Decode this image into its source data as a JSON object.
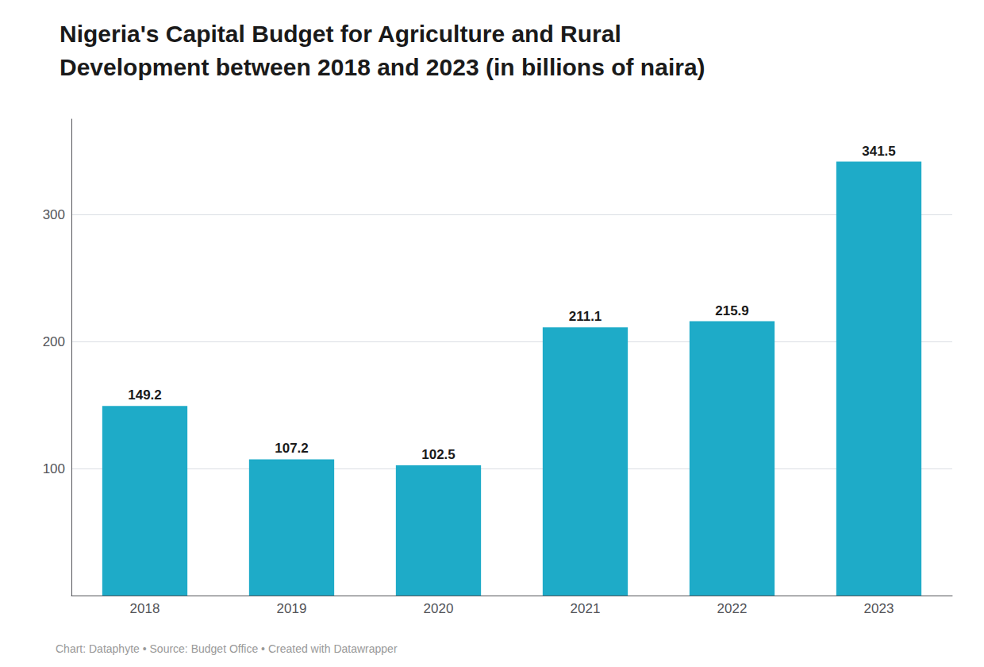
{
  "chart_data": {
    "type": "bar",
    "title": "Nigeria's Capital Budget for Agriculture and Rural\nDevelopment between 2018 and 2023 (in billions of naira)",
    "annotations": [
      "Chart: Dataphyte • Source: Budget Office • Created with Datawrapper"
    ],
    "categories": [
      "2018",
      "2019",
      "2020",
      "2021",
      "2022",
      "2023"
    ],
    "values": [
      149.2,
      107.2,
      102.5,
      211.1,
      215.9,
      341.5
    ],
    "color": "#1eabc8",
    "ylim": [
      0,
      375
    ],
    "yticks": [
      100,
      200,
      300
    ],
    "grid": true,
    "data_labels": true
  }
}
